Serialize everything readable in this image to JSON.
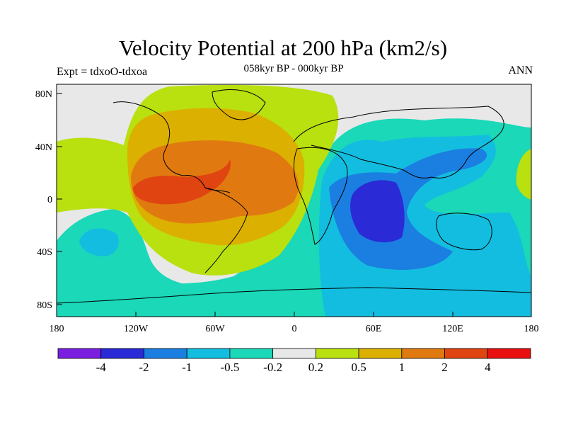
{
  "header": {
    "title": "Velocity Potential at 200 hPa (km2/s)",
    "subtitle": "058kyr BP - 000kyr BP",
    "left_label": "Expt = tdxoO-tdxoa",
    "right_label": "ANN"
  },
  "map": {
    "projection": "cylindrical-equidistant",
    "lon_range": [
      -180,
      180
    ],
    "lat_range": [
      -90,
      90
    ],
    "lat_ticks": [
      "80N",
      "40N",
      "0",
      "40S",
      "80S"
    ],
    "lon_ticks": [
      "180",
      "120W",
      "60W",
      "0",
      "60E",
      "120E",
      "180"
    ],
    "field_shading_colors": {
      "lt_-4": "#7a1ee0",
      "-4_-2": "#2a2ad6",
      "-2_-1": "#1a7fe0",
      "-1_-0.5": "#13bde0",
      "-0.5_-0.2": "#1ad8b8",
      "-0.2_0.2": "#e8e8e8",
      "0.2_0.5": "#b9e00f",
      "0.5_1": "#dcb000",
      "1_2": "#e07a10",
      "2_4": "#e04410",
      "gt_4": "#e81010"
    }
  },
  "colorbar": {
    "labels": [
      "-4",
      "-2",
      "-1",
      "-0.5",
      "-0.2",
      "0.2",
      "0.5",
      "1",
      "2",
      "4"
    ],
    "colors": [
      "#7a1ee0",
      "#2a2ad6",
      "#1a7fe0",
      "#13bde0",
      "#1ad8b8",
      "#e8e8e8",
      "#b9e00f",
      "#dcb000",
      "#e07a10",
      "#e04410",
      "#e81010"
    ]
  }
}
